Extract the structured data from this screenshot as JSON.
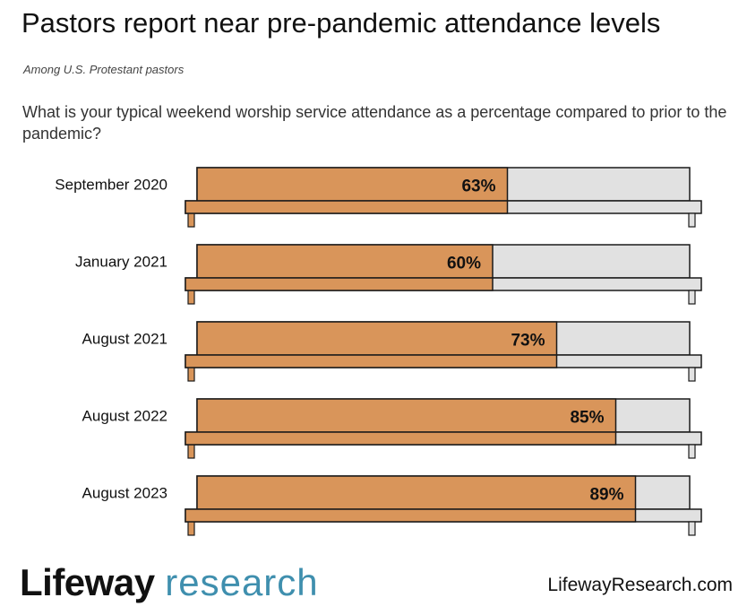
{
  "title": "Pastors report near pre-pandemic attendance levels",
  "subtitle": "Among U.S. Protestant pastors",
  "question": "What is your typical weekend worship service attendance as a percentage compared to prior to the pandemic?",
  "chart_data": {
    "type": "bar",
    "orientation": "horizontal",
    "categories": [
      "September 2020",
      "January 2021",
      "August 2021",
      "August 2022",
      "August 2023"
    ],
    "values": [
      63,
      60,
      73,
      85,
      89
    ],
    "data_labels": [
      "63%",
      "60%",
      "73%",
      "85%",
      "89%"
    ],
    "xlim": [
      0,
      100
    ],
    "colors": {
      "bar": "#d9955a",
      "remainder": "#e1e1e1",
      "outline": "#1a1a1a"
    }
  },
  "footer": {
    "logo_word1": "Lifeway",
    "logo_word2": "research",
    "website": "LifewayResearch.com"
  }
}
